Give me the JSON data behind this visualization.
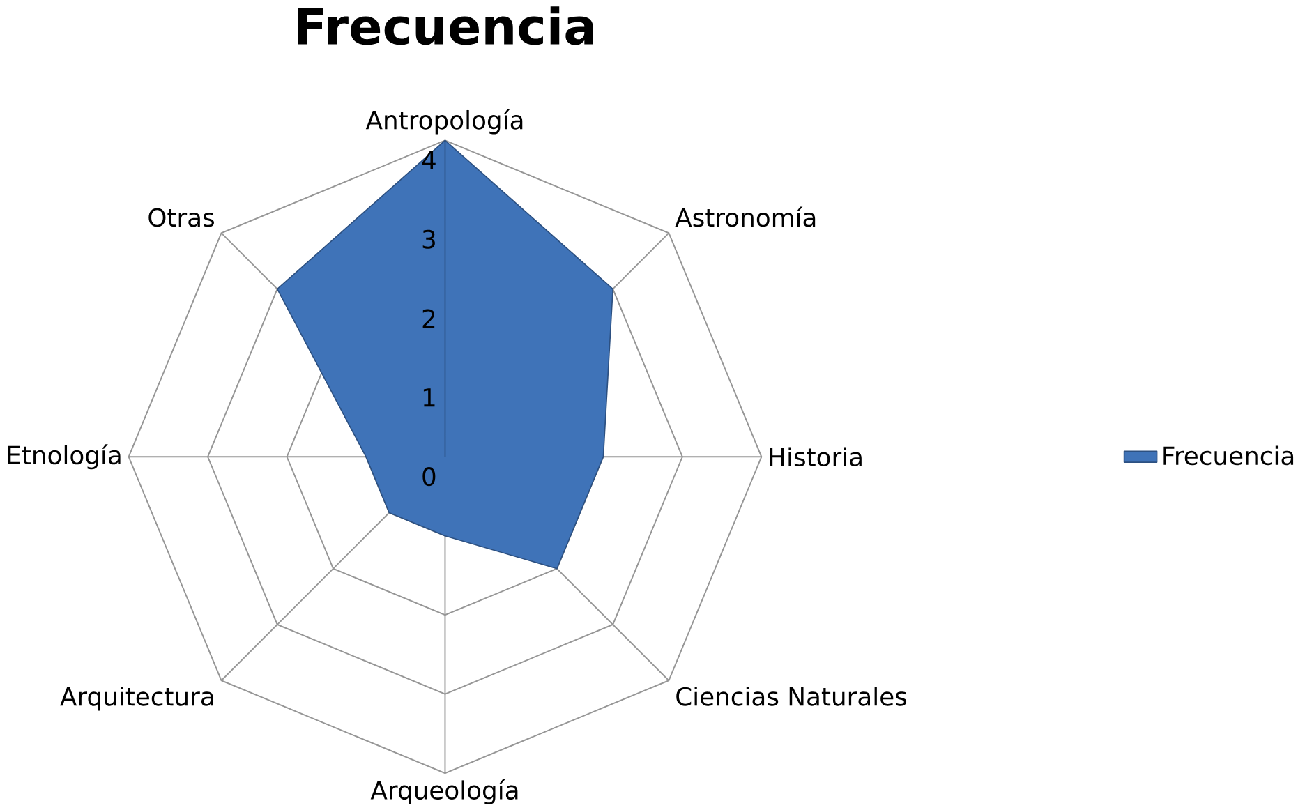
{
  "chart_data": {
    "type": "radar",
    "title": "Frecuencia",
    "categories": [
      "Antropología",
      "Astronomía",
      "Historia",
      "Ciencias Naturales",
      "Arqueología",
      "Arquitectura",
      "Etnología",
      "Otras"
    ],
    "series": [
      {
        "name": "Frecuencia",
        "color": "#3f73b8",
        "values": [
          4,
          3,
          2,
          2,
          1,
          1,
          1,
          3
        ]
      }
    ],
    "ylim": [
      0,
      4
    ],
    "yticks": [
      0,
      1,
      2,
      3,
      4
    ],
    "grid": true,
    "legend": "right"
  }
}
